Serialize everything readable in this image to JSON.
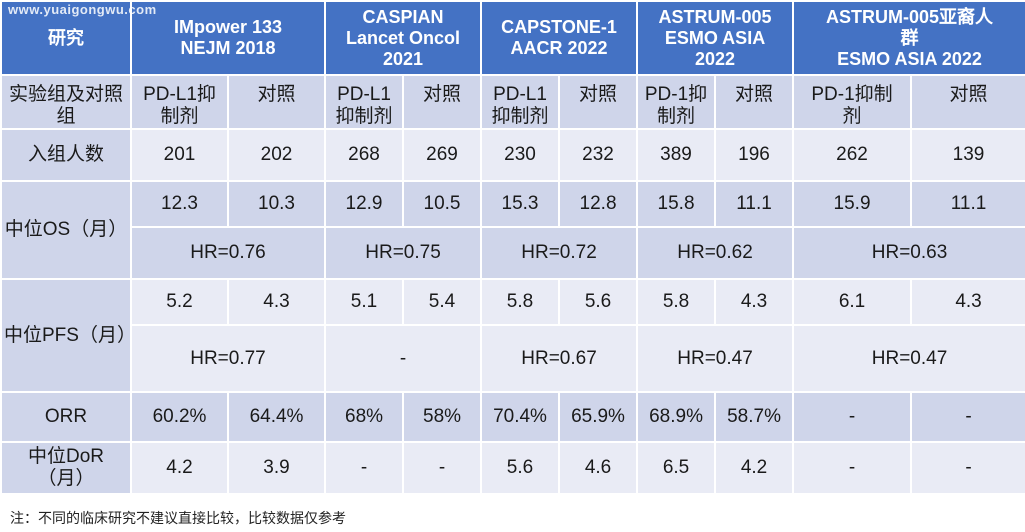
{
  "watermark": "www.yuaigongwu.com",
  "header": {
    "study_label": "研究",
    "studies": [
      "IMpower 133\nNEJM 2018",
      "CASPIAN\nLancet Oncol\n2021",
      "CAPSTONE-1\nAACR 2022",
      "ASTRUM-005\nESMO ASIA\n2022",
      "ASTRUM-005亚裔人\n群\nESMO ASIA 2022"
    ]
  },
  "groups": {
    "label": "实验组及对照\n组",
    "cells": [
      "PD-L1抑\n制剂",
      "对照",
      "PD-L1\n抑制剂",
      "对照",
      "PD-L1\n抑制剂",
      "对照",
      "PD-1抑\n制剂",
      "对照",
      "PD-1抑制\n剂",
      "对照"
    ]
  },
  "enrolled": {
    "label": "入组人数",
    "values": [
      "201",
      "202",
      "268",
      "269",
      "230",
      "232",
      "389",
      "196",
      "262",
      "139"
    ]
  },
  "os": {
    "label": "中位OS（月）",
    "values": [
      "12.3",
      "10.3",
      "12.9",
      "10.5",
      "15.3",
      "12.8",
      "15.8",
      "11.1",
      "15.9",
      "11.1"
    ],
    "hr": [
      "HR=0.76",
      "HR=0.75",
      "HR=0.72",
      "HR=0.62",
      "HR=0.63"
    ]
  },
  "pfs": {
    "label": "中位PFS（月）",
    "values": [
      "5.2",
      "4.3",
      "5.1",
      "5.4",
      "5.8",
      "5.6",
      "5.8",
      "4.3",
      "6.1",
      "4.3"
    ],
    "hr": [
      "HR=0.77",
      "-",
      "HR=0.67",
      "HR=0.47",
      "HR=0.47"
    ]
  },
  "orr": {
    "label": "ORR",
    "values": [
      "60.2%",
      "64.4%",
      "68%",
      "58%",
      "70.4%",
      "65.9%",
      "68.9%",
      "58.7%",
      "-",
      "-"
    ]
  },
  "dor": {
    "label": "中位DoR\n（月）",
    "values": [
      "4.2",
      "3.9",
      "-",
      "-",
      "5.6",
      "4.6",
      "6.5",
      "4.2",
      "-",
      "-"
    ]
  },
  "footnote": "注：不同的临床研究不建议直接比较，比较数据仅参考"
}
